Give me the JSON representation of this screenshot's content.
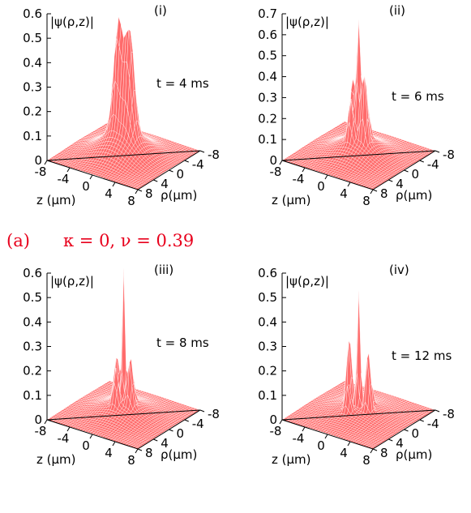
{
  "caption": {
    "label": "(a)",
    "params": "κ = 0, ν = 0.39"
  },
  "panels": [
    {
      "label": "(i)",
      "zlabel": "|ψ(ρ,z)|",
      "time": "t = 4 ms",
      "zlim": [
        0,
        0.6
      ],
      "zticks": [
        0,
        0.1,
        0.2,
        0.3,
        0.4,
        0.5,
        0.6
      ],
      "xlabel": "z (μm)",
      "xlim": [
        -8,
        8
      ],
      "xticks": [
        -8,
        -4,
        0,
        4,
        8
      ],
      "ylabel": "ρ(μm)",
      "ylim": [
        8,
        -8
      ],
      "yticks": [
        8,
        4,
        0,
        -4,
        -8
      ]
    },
    {
      "label": "(ii)",
      "zlabel": "|ψ(ρ,z)|",
      "time": "t = 6 ms",
      "zlim": [
        0,
        0.7
      ],
      "zticks": [
        0,
        0.1,
        0.2,
        0.3,
        0.4,
        0.5,
        0.6,
        0.7
      ],
      "xlabel": "z (μm)",
      "xlim": [
        -8,
        8
      ],
      "xticks": [
        -8,
        -4,
        0,
        4,
        8
      ],
      "ylabel": "ρ(μm)",
      "ylim": [
        8,
        -8
      ],
      "yticks": [
        8,
        4,
        0,
        -4,
        -8
      ]
    },
    {
      "label": "(iii)",
      "zlabel": "|ψ(ρ,z)|",
      "time": "t = 8 ms",
      "zlim": [
        0,
        0.6
      ],
      "zticks": [
        0,
        0.1,
        0.2,
        0.3,
        0.4,
        0.5,
        0.6
      ],
      "xlabel": "z (μm)",
      "xlim": [
        -8,
        8
      ],
      "xticks": [
        -8,
        -4,
        0,
        4,
        8
      ],
      "ylabel": "ρ(μm)",
      "ylim": [
        8,
        -8
      ],
      "yticks": [
        8,
        4,
        0,
        -4,
        -8
      ]
    },
    {
      "label": "(iv)",
      "zlabel": "|ψ(ρ,z)|",
      "time": "t = 12 ms",
      "zlim": [
        0,
        0.6
      ],
      "zticks": [
        0,
        0.1,
        0.2,
        0.3,
        0.4,
        0.5,
        0.6
      ],
      "xlabel": "z (μm)",
      "xlim": [
        -8,
        8
      ],
      "xticks": [
        -8,
        -4,
        0,
        4,
        8
      ],
      "ylabel": "ρ(μm)",
      "ylim": [
        8,
        -8
      ],
      "yticks": [
        8,
        4,
        0,
        -4,
        -8
      ]
    }
  ]
}
